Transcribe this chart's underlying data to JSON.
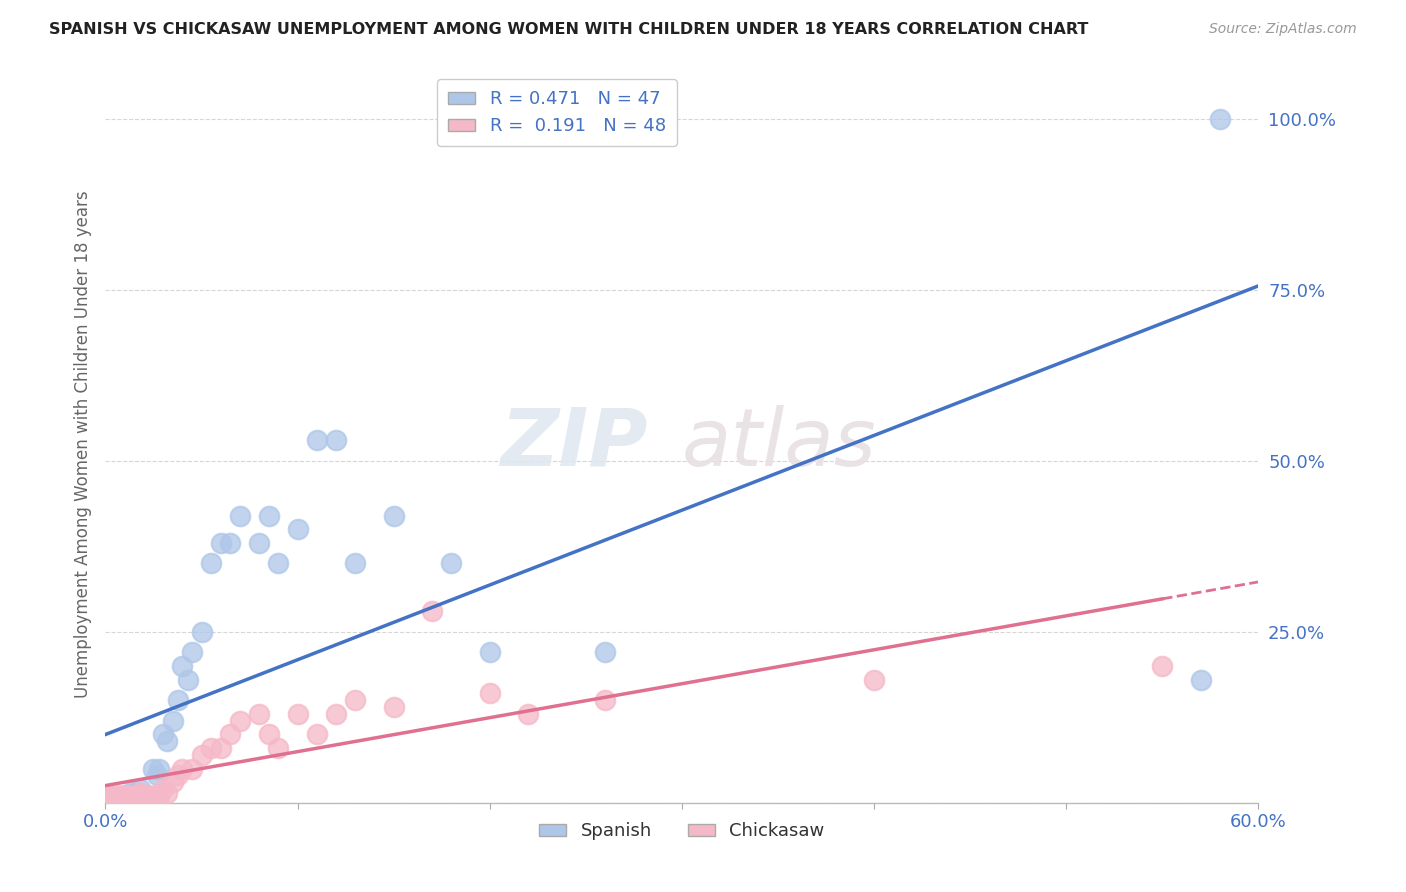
{
  "title": "SPANISH VS CHICKASAW UNEMPLOYMENT AMONG WOMEN WITH CHILDREN UNDER 18 YEARS CORRELATION CHART",
  "source": "Source: ZipAtlas.com",
  "ylabel": "Unemployment Among Women with Children Under 18 years",
  "xlim": [
    0.0,
    0.6
  ],
  "ylim": [
    0.0,
    1.05
  ],
  "xticks": [
    0.0,
    0.1,
    0.2,
    0.3,
    0.4,
    0.5,
    0.6
  ],
  "xticklabels": [
    "0.0%",
    "",
    "",
    "",
    "",
    "",
    "60.0%"
  ],
  "yticks": [
    0.0,
    0.25,
    0.5,
    0.75,
    1.0
  ],
  "yticklabels": [
    "",
    "25.0%",
    "50.0%",
    "75.0%",
    "100.0%"
  ],
  "spanish_color": "#aec6e8",
  "chickasaw_color": "#f5b8c8",
  "regression_spanish_color": "#4472c4",
  "regression_chickasaw_color": "#e07090",
  "spanish_R": 0.471,
  "spanish_N": 47,
  "chickasaw_R": 0.191,
  "chickasaw_N": 48,
  "spanish_x": [
    0.002,
    0.003,
    0.004,
    0.005,
    0.006,
    0.007,
    0.008,
    0.009,
    0.01,
    0.011,
    0.012,
    0.013,
    0.015,
    0.016,
    0.017,
    0.018,
    0.02,
    0.022,
    0.023,
    0.025,
    0.027,
    0.028,
    0.03,
    0.032,
    0.035,
    0.038,
    0.04,
    0.043,
    0.045,
    0.05,
    0.055,
    0.06,
    0.065,
    0.07,
    0.08,
    0.085,
    0.09,
    0.1,
    0.11,
    0.12,
    0.13,
    0.15,
    0.18,
    0.2,
    0.26,
    0.57,
    0.58
  ],
  "spanish_y": [
    0.01,
    0.01,
    0.01,
    0.01,
    0.01,
    0.01,
    0.01,
    0.01,
    0.01,
    0.01,
    0.01,
    0.015,
    0.01,
    0.01,
    0.015,
    0.02,
    0.01,
    0.01,
    0.01,
    0.05,
    0.04,
    0.05,
    0.1,
    0.09,
    0.12,
    0.15,
    0.2,
    0.18,
    0.22,
    0.25,
    0.35,
    0.38,
    0.38,
    0.42,
    0.38,
    0.42,
    0.35,
    0.4,
    0.53,
    0.53,
    0.35,
    0.42,
    0.35,
    0.22,
    0.22,
    0.18,
    1.0
  ],
  "chickasaw_x": [
    0.002,
    0.003,
    0.004,
    0.005,
    0.006,
    0.007,
    0.008,
    0.009,
    0.01,
    0.011,
    0.012,
    0.013,
    0.015,
    0.016,
    0.017,
    0.018,
    0.019,
    0.02,
    0.022,
    0.023,
    0.025,
    0.027,
    0.028,
    0.03,
    0.032,
    0.035,
    0.038,
    0.04,
    0.045,
    0.05,
    0.055,
    0.06,
    0.065,
    0.07,
    0.08,
    0.085,
    0.09,
    0.1,
    0.11,
    0.12,
    0.13,
    0.15,
    0.17,
    0.2,
    0.22,
    0.26,
    0.4,
    0.55
  ],
  "chickasaw_y": [
    0.01,
    0.01,
    0.01,
    0.01,
    0.01,
    0.01,
    0.01,
    0.01,
    0.01,
    0.01,
    0.01,
    0.01,
    0.01,
    0.01,
    0.01,
    0.015,
    0.01,
    0.01,
    0.01,
    0.01,
    0.01,
    0.01,
    0.01,
    0.02,
    0.015,
    0.03,
    0.04,
    0.05,
    0.05,
    0.07,
    0.08,
    0.08,
    0.1,
    0.12,
    0.13,
    0.1,
    0.08,
    0.13,
    0.1,
    0.13,
    0.15,
    0.14,
    0.28,
    0.16,
    0.13,
    0.15,
    0.18,
    0.2
  ],
  "watermark_zip": "ZIP",
  "watermark_atlas": "atlas",
  "background_color": "#ffffff",
  "grid_color": "#cccccc"
}
